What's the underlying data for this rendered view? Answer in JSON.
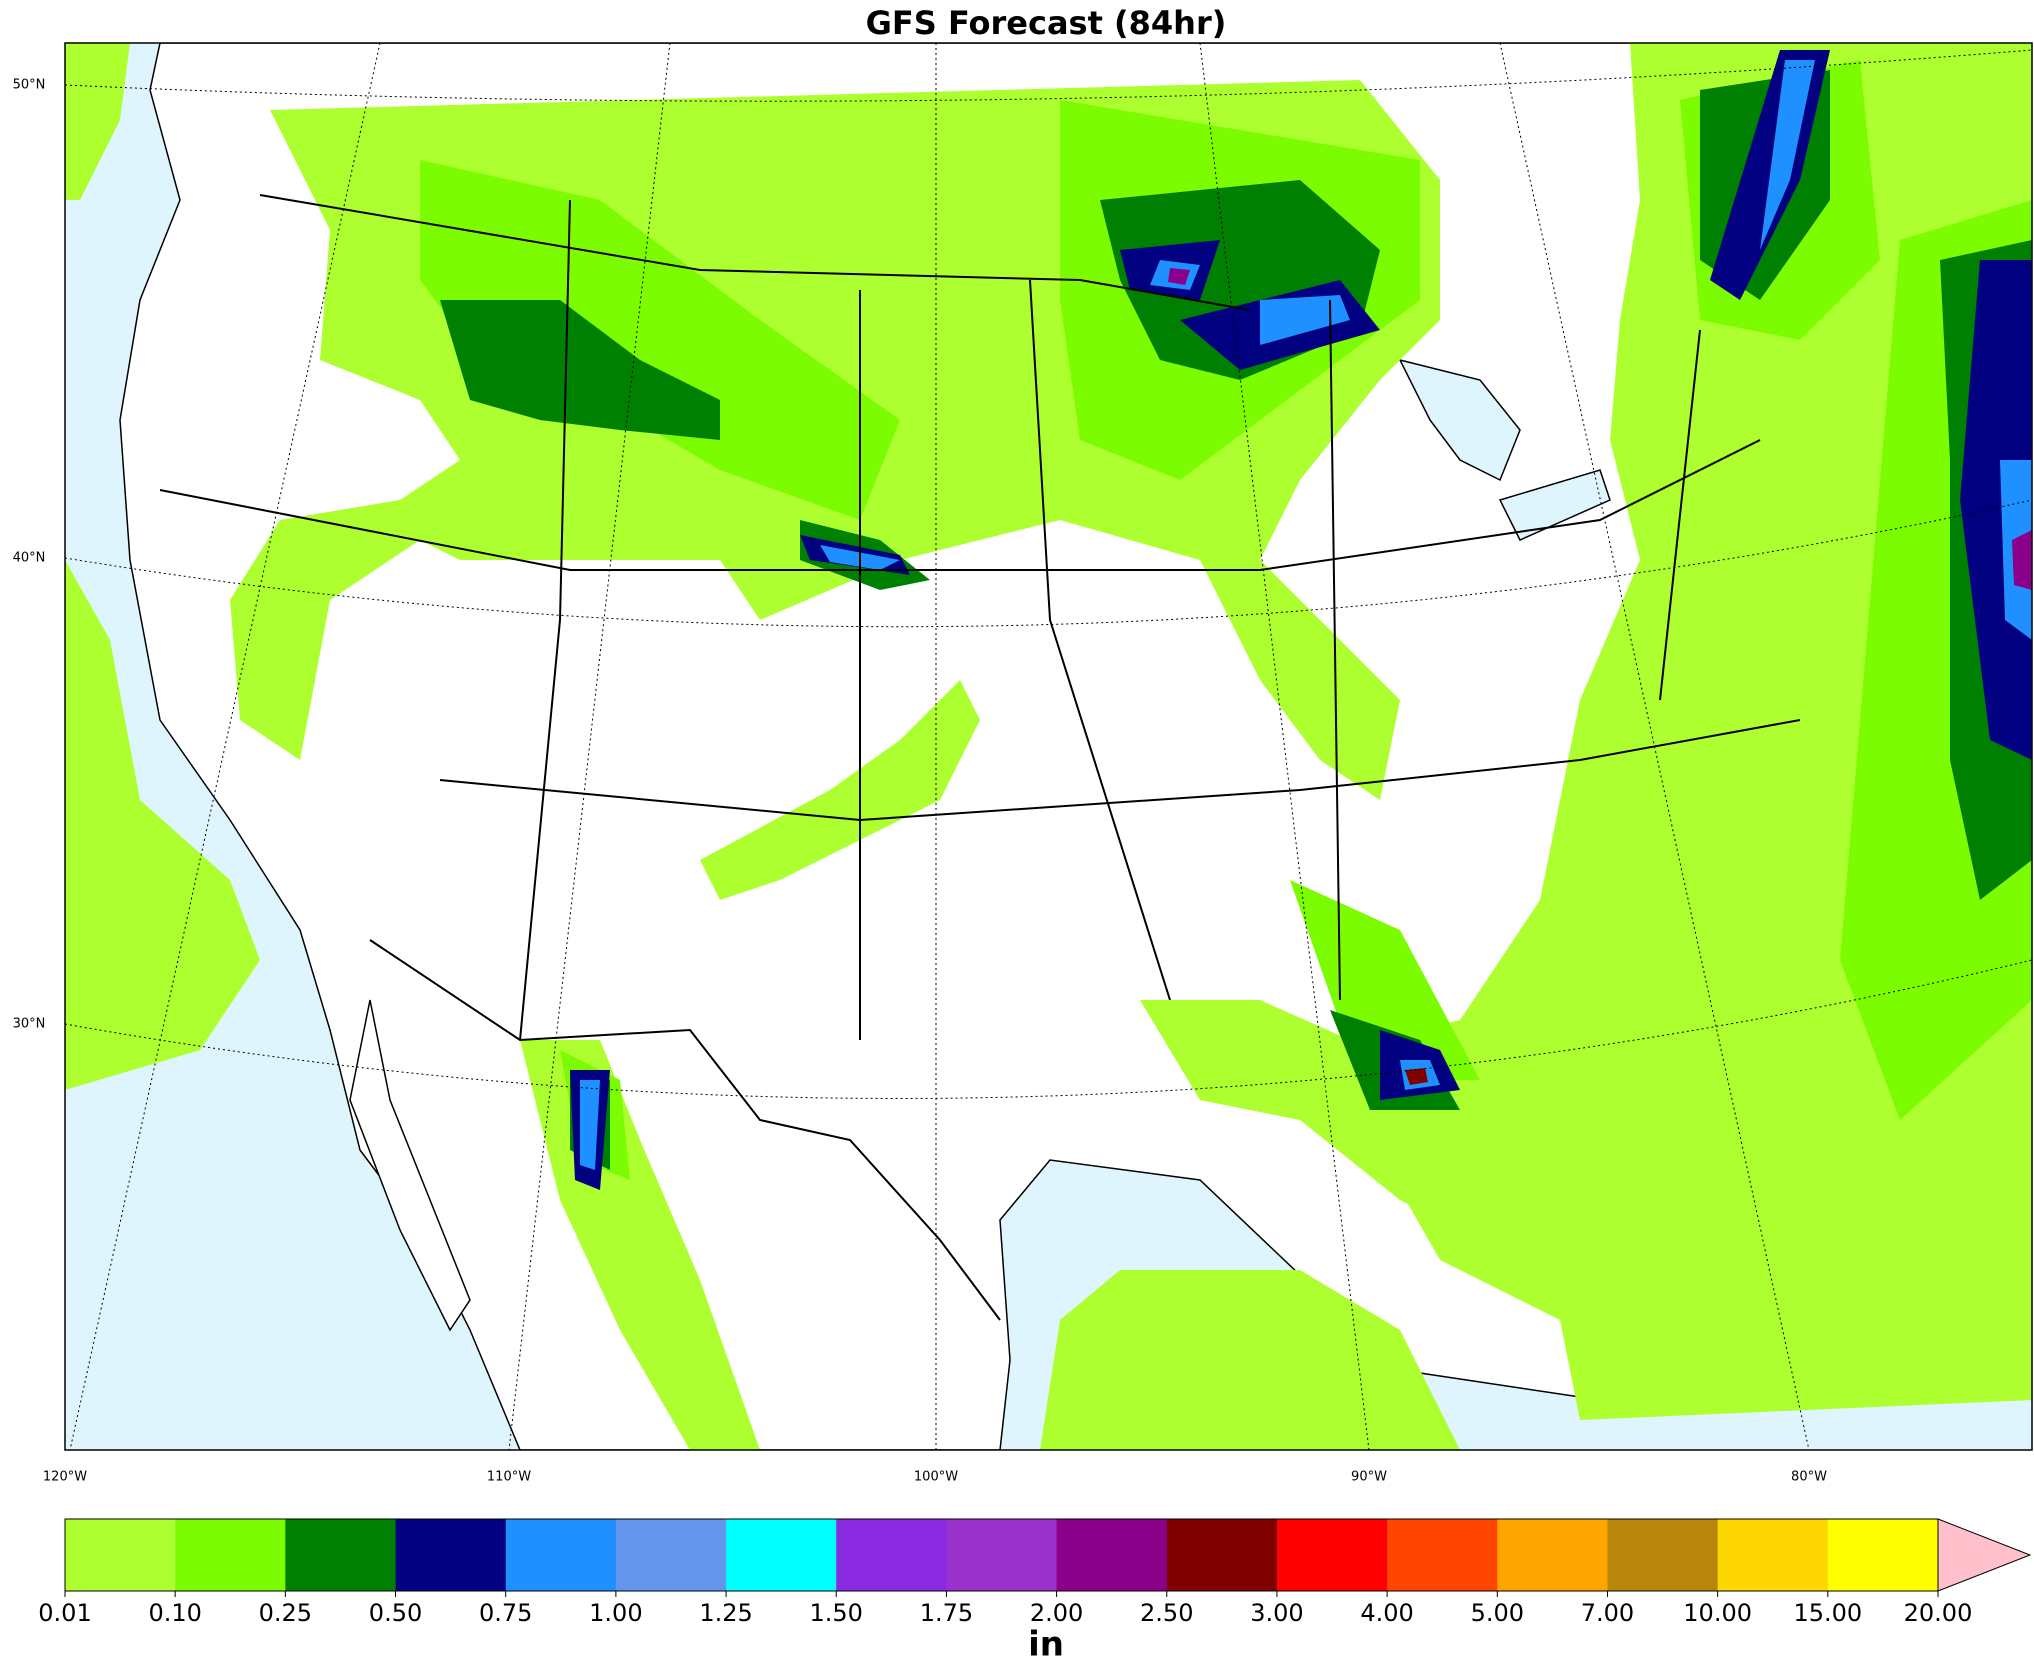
{
  "title": "GFS Forecast (84hr)",
  "map": {
    "lat_labels": [
      "50°N",
      "40°N",
      "30°N"
    ],
    "lon_labels": [
      "120°W",
      "110°W",
      "100°W",
      "90°W",
      "80°W"
    ]
  },
  "colorbar": {
    "ticks": [
      0.01,
      {
        "value": 0.1,
        "label": "0.10"
      },
      0.25,
      {
        "value": 0.5,
        "label": "0.50"
      },
      0.75,
      {
        "value": 1,
        "label": "1.00"
      },
      1.25,
      {
        "value": 1.5,
        "label": "1.50"
      },
      1.75,
      {
        "value": 2,
        "label": "2.00"
      },
      {
        "value": 2.5,
        "label": "2.50"
      },
      {
        "value": 3,
        "label": "3.00"
      },
      {
        "value": 4,
        "label": "4.00"
      },
      {
        "value": 5,
        "label": "5.00"
      },
      {
        "value": 7,
        "label": "7.00"
      },
      {
        "value": 10,
        "label": "10.00"
      },
      {
        "value": 15,
        "label": "15.00"
      },
      {
        "value": 20,
        "label": "20.00"
      }
    ],
    "colors": [
      "#adff2f",
      "#7cfc00",
      "#008000",
      "#000080",
      "#1e90ff",
      "#6495ed",
      "#00ffff",
      "#8a2be2",
      "#9932cc",
      "#8b008b",
      "#800000",
      "#ff0000",
      "#ff4500",
      "#ffa500",
      "#b8860b",
      "#ffd700",
      "#ffff00"
    ],
    "extend_color": "#ffc0cb",
    "label": "in"
  }
}
